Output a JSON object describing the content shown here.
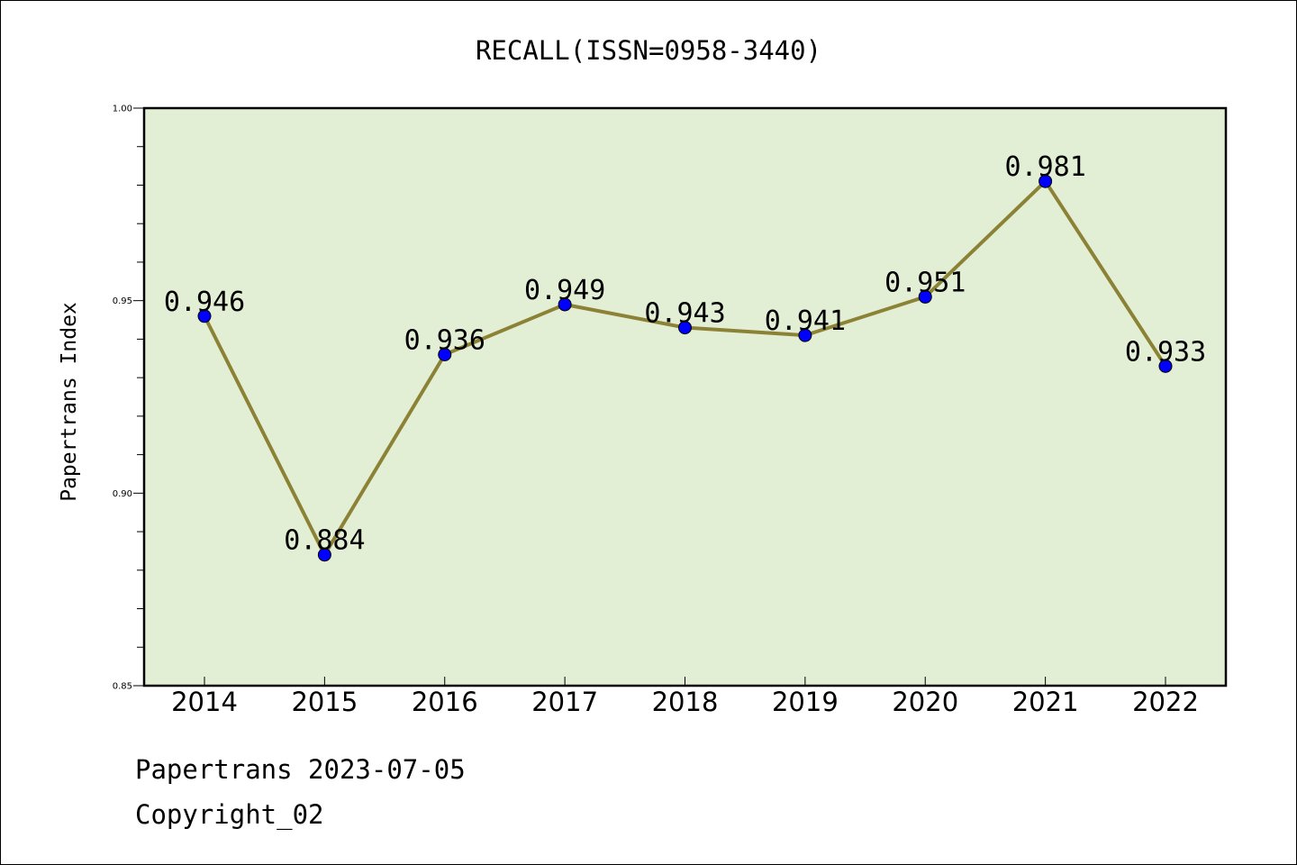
{
  "chart_data": {
    "type": "line",
    "title": "RECALL(ISSN=0958-3440)",
    "xlabel": "",
    "ylabel": "Papertrans Index",
    "categories": [
      "2014",
      "2015",
      "2016",
      "2017",
      "2018",
      "2019",
      "2020",
      "2021",
      "2022"
    ],
    "series": [
      {
        "values": [
          0.946,
          0.884,
          0.936,
          0.949,
          0.943,
          0.941,
          0.951,
          0.981,
          0.933
        ],
        "labels": [
          "0.946",
          "0.884",
          "0.936",
          "0.949",
          "0.943",
          "0.941",
          "0.951",
          "0.981",
          "0.933"
        ]
      }
    ],
    "ylim": [
      0.85,
      1.0
    ],
    "yticks": [
      "0.85",
      "0.90",
      "0.95",
      "1.00"
    ],
    "ytick_values": [
      0.85,
      0.9,
      0.95,
      1.0
    ],
    "grid": false,
    "colors": {
      "plot_background": "#e2efd5",
      "line": "#8c8236",
      "marker": "#0000ff",
      "axis": "#000000"
    }
  },
  "footer": {
    "line1": "Papertrans 2023-07-05",
    "line2": "Copyright_02"
  }
}
